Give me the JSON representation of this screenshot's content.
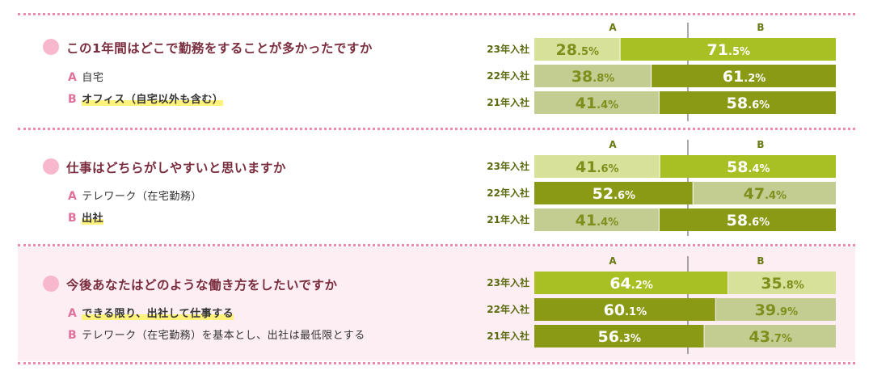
{
  "colors": {
    "divider": "#f08aa8",
    "bullet": "#f7b8cd",
    "question_text": "#7a2d3e",
    "option_key": "#e0719a",
    "highlight": "#fff27a",
    "section3_background": "#fdeef3",
    "bar_light_lime": "#d7e199",
    "bar_bright_lime": "#a8c023",
    "bar_grey_olive": "#c3cc91",
    "bar_dark_olive": "#8a9a14",
    "label_on_dark": "#ffffff",
    "label_on_light": "#7f8f1c"
  },
  "chart_data": [
    {
      "type": "bar",
      "stacked": true,
      "orientation": "horizontal",
      "title": "この1年間はどこで勤務をすることが多かったですか",
      "options": [
        {
          "key": "A",
          "label": "自宅",
          "highlighted": false
        },
        {
          "key": "B",
          "label": "オフィス（自宅以外も含む）",
          "highlighted": true
        }
      ],
      "column_labels": [
        "A",
        "B"
      ],
      "categories": [
        "23年入社",
        "22年入社",
        "21年入社"
      ],
      "series": [
        {
          "name": "A",
          "values": [
            28.5,
            38.8,
            41.4
          ],
          "labels": [
            [
              "28",
              ".5%"
            ],
            [
              "38",
              ".8%"
            ],
            [
              "41",
              ".4%"
            ]
          ],
          "colors": [
            "#d7e199",
            "#c3cc91",
            "#c3cc91"
          ]
        },
        {
          "name": "B",
          "values": [
            71.5,
            61.2,
            58.6
          ],
          "labels": [
            [
              "71",
              ".5%"
            ],
            [
              "61",
              ".2%"
            ],
            [
              "58",
              ".6%"
            ]
          ],
          "colors": [
            "#a8c023",
            "#8a9a14",
            "#8a9a14"
          ]
        }
      ],
      "label_colors": {
        "A": [
          "#7f8f1c",
          "#7f8f1c",
          "#7f8f1c"
        ],
        "B": [
          "#ffffff",
          "#ffffff",
          "#ffffff"
        ]
      },
      "xlim": [
        0,
        100
      ]
    },
    {
      "type": "bar",
      "stacked": true,
      "orientation": "horizontal",
      "title": "仕事はどちらがしやすいと思いますか",
      "options": [
        {
          "key": "A",
          "label": "テレワーク（在宅勤務）",
          "highlighted": false
        },
        {
          "key": "B",
          "label": "出社",
          "highlighted": true
        }
      ],
      "column_labels": [
        "A",
        "B"
      ],
      "categories": [
        "23年入社",
        "22年入社",
        "21年入社"
      ],
      "series": [
        {
          "name": "A",
          "values": [
            41.6,
            52.6,
            41.4
          ],
          "labels": [
            [
              "41",
              ".6%"
            ],
            [
              "52",
              ".6%"
            ],
            [
              "41",
              ".4%"
            ]
          ],
          "colors": [
            "#d7e199",
            "#8a9a14",
            "#c3cc91"
          ]
        },
        {
          "name": "B",
          "values": [
            58.4,
            47.4,
            58.6
          ],
          "labels": [
            [
              "58",
              ".4%"
            ],
            [
              "47",
              ".4%"
            ],
            [
              "58",
              ".6%"
            ]
          ],
          "colors": [
            "#a8c023",
            "#c3cc91",
            "#8a9a14"
          ]
        }
      ],
      "label_colors": {
        "A": [
          "#7f8f1c",
          "#ffffff",
          "#7f8f1c"
        ],
        "B": [
          "#ffffff",
          "#7f8f1c",
          "#ffffff"
        ]
      },
      "xlim": [
        0,
        100
      ]
    },
    {
      "type": "bar",
      "stacked": true,
      "orientation": "horizontal",
      "title": "今後あなたはどのような働き方をしたいですか",
      "options": [
        {
          "key": "A",
          "label": "できる限り、出社して仕事する",
          "highlighted": true
        },
        {
          "key": "B",
          "label": "テレワーク（在宅勤務）を基本とし、出社は最低限とする",
          "highlighted": false
        }
      ],
      "column_labels": [
        "A",
        "B"
      ],
      "categories": [
        "23年入社",
        "22年入社",
        "21年入社"
      ],
      "series": [
        {
          "name": "A",
          "values": [
            64.2,
            60.1,
            56.3
          ],
          "labels": [
            [
              "64",
              ".2%"
            ],
            [
              "60",
              ".1%"
            ],
            [
              "56",
              ".3%"
            ]
          ],
          "colors": [
            "#a8c023",
            "#8a9a14",
            "#8a9a14"
          ]
        },
        {
          "name": "B",
          "values": [
            35.8,
            39.9,
            43.7
          ],
          "labels": [
            [
              "35",
              ".8%"
            ],
            [
              "39",
              ".9%"
            ],
            [
              "43",
              ".7%"
            ]
          ],
          "colors": [
            "#d7e199",
            "#c3cc91",
            "#c3cc91"
          ]
        }
      ],
      "label_colors": {
        "A": [
          "#ffffff",
          "#ffffff",
          "#ffffff"
        ],
        "B": [
          "#7f8f1c",
          "#7f8f1c",
          "#7f8f1c"
        ]
      },
      "xlim": [
        0,
        100
      ]
    }
  ]
}
